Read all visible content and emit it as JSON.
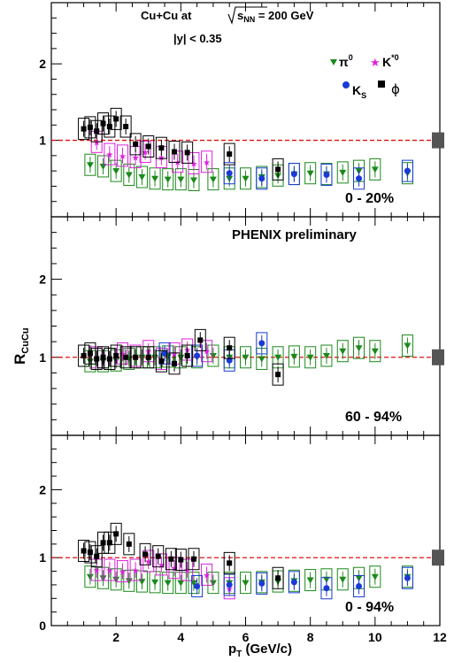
{
  "figure": {
    "header_line1_prefix": "Cu+Cu  at",
    "header_sqrt_s": "s",
    "header_sub": "NN",
    "header_value": " = 200 GeV",
    "header_line2": "|y| < 0.35",
    "preliminary": "PHENIX preliminary",
    "ylabel_main": "R",
    "ylabel_sub": "CuCu",
    "xlabel_main": "p",
    "xlabel_sub": "T",
    "xlabel_unit": " (GeV/c)",
    "legend": {
      "pi0": "π",
      "pi0_sup": "0",
      "kstar": "K",
      "kstar_sup": "*0",
      "ks": "K",
      "ks_sub": "S",
      "phi": "ϕ"
    }
  },
  "colors": {
    "pi0": "#1a8a1a",
    "kstar": "#e020e0",
    "ks": "#1a3ad6",
    "phi": "#000000",
    "ref": "#e01010"
  },
  "chart_data": [
    {
      "type": "scatter",
      "panel": "0 - 20%",
      "label": "0 - 20%",
      "xlim": [
        0,
        12
      ],
      "ylim": [
        0,
        2.8
      ],
      "reference_line": 1,
      "series": [
        {
          "name": "π0",
          "marker": "triangle-down",
          "points": [
            [
              1.2,
              0.68
            ],
            [
              1.6,
              0.66
            ],
            [
              2.0,
              0.6
            ],
            [
              2.4,
              0.55
            ],
            [
              2.8,
              0.52
            ],
            [
              3.2,
              0.5
            ],
            [
              3.6,
              0.49
            ],
            [
              4.0,
              0.49
            ],
            [
              4.4,
              0.48
            ],
            [
              5.0,
              0.49
            ],
            [
              5.5,
              0.5
            ],
            [
              6.0,
              0.5
            ],
            [
              6.5,
              0.52
            ],
            [
              7.0,
              0.54
            ],
            [
              7.5,
              0.56
            ],
            [
              8.0,
              0.57
            ],
            [
              8.5,
              0.56
            ],
            [
              9.0,
              0.58
            ],
            [
              9.5,
              0.6
            ],
            [
              10.0,
              0.62
            ],
            [
              11.0,
              0.57
            ]
          ]
        },
        {
          "name": "K*0",
          "marker": "star",
          "points": [
            [
              1.4,
              0.98
            ],
            [
              1.8,
              0.82
            ],
            [
              2.2,
              0.8
            ],
            [
              2.6,
              0.78
            ],
            [
              2.9,
              0.85
            ],
            [
              3.4,
              0.78
            ],
            [
              3.9,
              0.72
            ],
            [
              4.4,
              0.7
            ],
            [
              4.8,
              0.72
            ]
          ]
        },
        {
          "name": "KS",
          "marker": "circle",
          "points": [
            [
              5.5,
              0.57
            ],
            [
              6.5,
              0.5
            ],
            [
              7.5,
              0.56
            ],
            [
              8.5,
              0.55
            ],
            [
              9.5,
              0.5
            ],
            [
              11.0,
              0.6
            ]
          ]
        },
        {
          "name": "ϕ",
          "marker": "square",
          "points": [
            [
              1.0,
              1.15
            ],
            [
              1.2,
              1.17
            ],
            [
              1.4,
              1.12
            ],
            [
              1.6,
              1.22
            ],
            [
              1.8,
              1.18
            ],
            [
              2.0,
              1.28
            ],
            [
              2.3,
              1.18
            ],
            [
              2.6,
              0.95
            ],
            [
              3.0,
              0.92
            ],
            [
              3.4,
              0.9
            ],
            [
              3.8,
              0.85
            ],
            [
              4.2,
              0.84
            ],
            [
              5.5,
              0.82
            ],
            [
              7.0,
              0.62
            ]
          ]
        }
      ]
    },
    {
      "type": "scatter",
      "panel": "60 - 94%",
      "label": "60 - 94%",
      "xlim": [
        0,
        12
      ],
      "ylim": [
        0,
        2.8
      ],
      "reference_line": 1,
      "series": [
        {
          "name": "π0",
          "marker": "triangle-down",
          "points": [
            [
              1.2,
              0.95
            ],
            [
              1.6,
              0.95
            ],
            [
              2.0,
              0.96
            ],
            [
              2.4,
              0.98
            ],
            [
              2.8,
              1.0
            ],
            [
              3.2,
              1.0
            ],
            [
              3.6,
              1.01
            ],
            [
              4.0,
              1.0
            ],
            [
              4.5,
              1.0
            ],
            [
              5.0,
              1.02
            ],
            [
              5.5,
              1.0
            ],
            [
              6.0,
              1.0
            ],
            [
              6.5,
              0.98
            ],
            [
              7.0,
              1.0
            ],
            [
              7.5,
              1.01
            ],
            [
              8.0,
              1.0
            ],
            [
              8.5,
              1.02
            ],
            [
              9.0,
              1.08
            ],
            [
              9.5,
              1.12
            ],
            [
              10.0,
              1.08
            ],
            [
              11.0,
              1.15
            ]
          ]
        },
        {
          "name": "K*0",
          "marker": "star",
          "points": [
            [
              1.4,
              1.0
            ],
            [
              1.8,
              0.98
            ],
            [
              2.2,
              1.05
            ],
            [
              2.6,
              1.02
            ],
            [
              3.0,
              1.08
            ],
            [
              3.4,
              0.98
            ],
            [
              3.8,
              1.05
            ],
            [
              4.2,
              1.1
            ],
            [
              4.8,
              1.08
            ]
          ]
        },
        {
          "name": "KS",
          "marker": "circle",
          "points": [
            [
              3.5,
              1.05
            ],
            [
              4.5,
              1.02
            ],
            [
              5.5,
              0.96
            ],
            [
              6.5,
              1.18
            ]
          ]
        },
        {
          "name": "ϕ",
          "marker": "square",
          "points": [
            [
              1.0,
              1.02
            ],
            [
              1.2,
              1.05
            ],
            [
              1.4,
              0.98
            ],
            [
              1.6,
              1.0
            ],
            [
              1.8,
              0.98
            ],
            [
              2.0,
              1.02
            ],
            [
              2.3,
              1.0
            ],
            [
              2.6,
              1.0
            ],
            [
              3.0,
              1.0
            ],
            [
              3.4,
              0.95
            ],
            [
              3.8,
              0.92
            ],
            [
              4.2,
              1.02
            ],
            [
              4.6,
              1.22
            ],
            [
              5.5,
              1.12
            ],
            [
              7.0,
              0.78
            ]
          ]
        }
      ]
    },
    {
      "type": "scatter",
      "panel": "0 - 94%",
      "label": "0 - 94%",
      "xlim": [
        0,
        12
      ],
      "ylim": [
        0,
        2.8
      ],
      "reference_line": 1,
      "series": [
        {
          "name": "π0",
          "marker": "triangle-down",
          "points": [
            [
              1.2,
              0.72
            ],
            [
              1.6,
              0.7
            ],
            [
              2.0,
              0.68
            ],
            [
              2.4,
              0.66
            ],
            [
              2.8,
              0.65
            ],
            [
              3.2,
              0.64
            ],
            [
              3.6,
              0.63
            ],
            [
              4.0,
              0.63
            ],
            [
              4.4,
              0.63
            ],
            [
              5.0,
              0.63
            ],
            [
              5.5,
              0.63
            ],
            [
              6.0,
              0.63
            ],
            [
              6.5,
              0.64
            ],
            [
              7.0,
              0.65
            ],
            [
              7.5,
              0.66
            ],
            [
              8.0,
              0.67
            ],
            [
              8.5,
              0.68
            ],
            [
              9.0,
              0.68
            ],
            [
              9.5,
              0.7
            ],
            [
              10.0,
              0.72
            ],
            [
              11.0,
              0.72
            ]
          ]
        },
        {
          "name": "K*0",
          "marker": "star",
          "points": [
            [
              1.4,
              0.82
            ],
            [
              1.8,
              0.82
            ],
            [
              2.2,
              0.8
            ],
            [
              2.6,
              0.82
            ],
            [
              3.0,
              0.95
            ],
            [
              3.4,
              0.9
            ],
            [
              3.8,
              0.85
            ],
            [
              4.2,
              0.82
            ],
            [
              4.8,
              0.75
            ],
            [
              5.5,
              0.55
            ]
          ]
        },
        {
          "name": "KS",
          "marker": "circle",
          "points": [
            [
              4.5,
              0.58
            ],
            [
              5.5,
              0.6
            ],
            [
              6.5,
              0.62
            ],
            [
              7.5,
              0.64
            ],
            [
              8.5,
              0.55
            ],
            [
              9.5,
              0.58
            ],
            [
              11.0,
              0.7
            ]
          ]
        },
        {
          "name": "ϕ",
          "marker": "square",
          "points": [
            [
              1.0,
              1.1
            ],
            [
              1.2,
              1.08
            ],
            [
              1.4,
              1.02
            ],
            [
              1.6,
              1.22
            ],
            [
              1.8,
              1.22
            ],
            [
              2.0,
              1.35
            ],
            [
              2.4,
              1.2
            ],
            [
              2.9,
              1.05
            ],
            [
              3.3,
              1.02
            ],
            [
              3.7,
              0.98
            ],
            [
              4.0,
              0.97
            ],
            [
              4.4,
              0.98
            ],
            [
              5.5,
              0.92
            ],
            [
              7.0,
              0.7
            ]
          ]
        }
      ]
    }
  ],
  "axes": {
    "x_ticks": [
      "2",
      "4",
      "6",
      "8",
      "10",
      "12"
    ],
    "y_ticks": [
      "0",
      "1",
      "2"
    ],
    "x_tick_values": [
      2,
      4,
      6,
      8,
      10,
      12
    ],
    "y_tick_values": [
      0,
      1,
      2
    ]
  }
}
